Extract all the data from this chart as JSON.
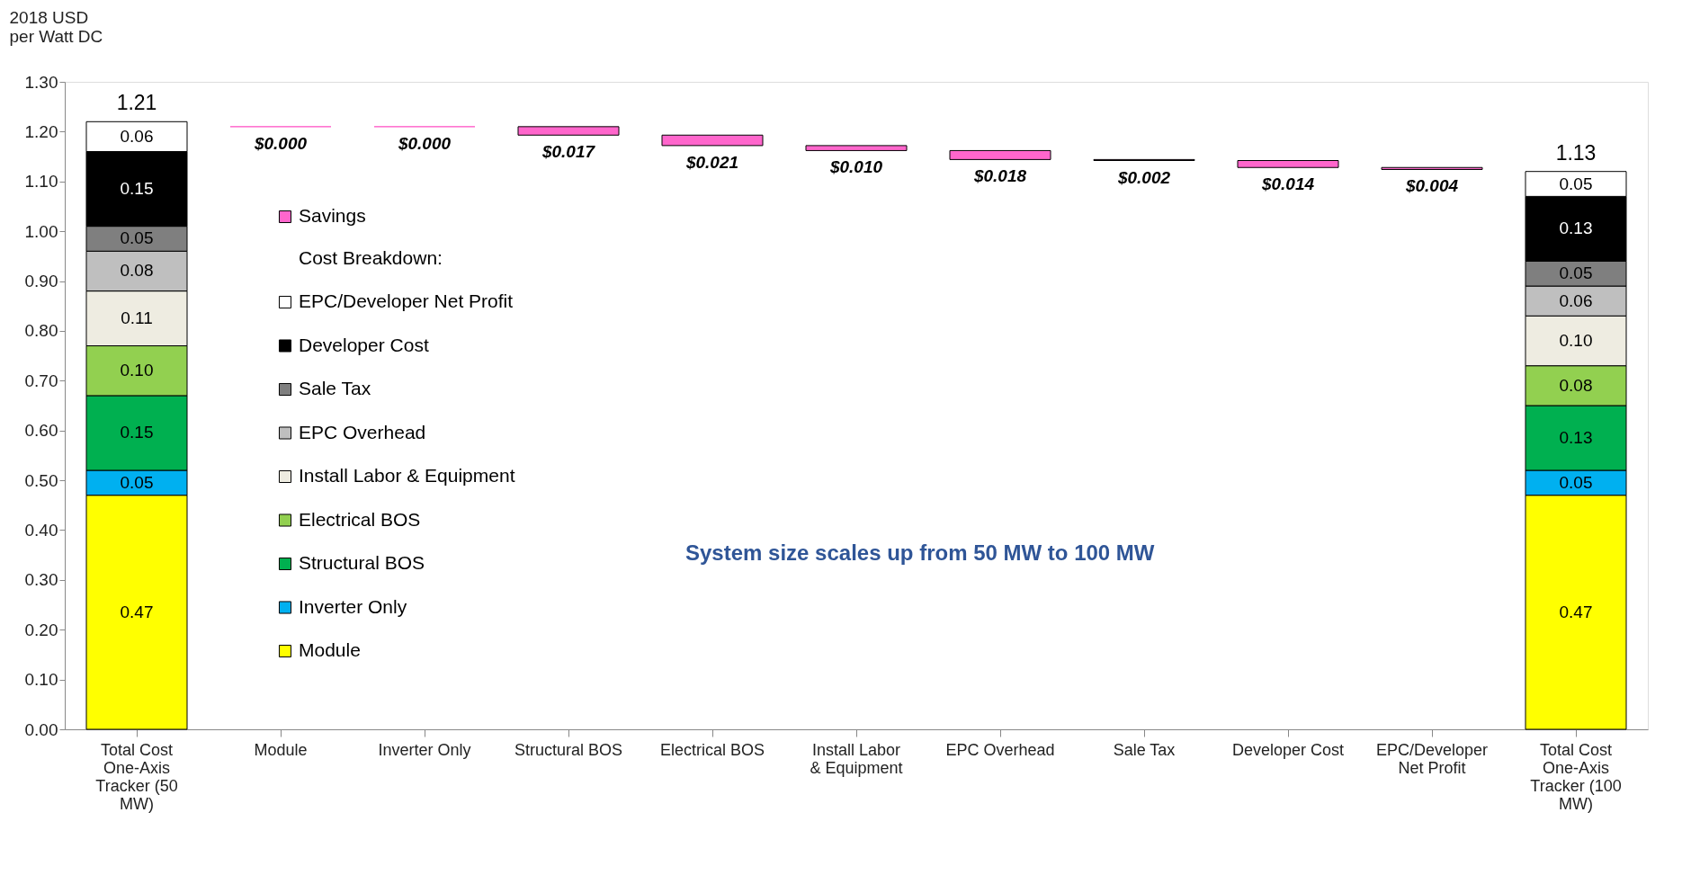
{
  "chart_data": {
    "type": "bar",
    "stacked": true,
    "ylabel": "2018 USD per Watt DC",
    "categories": [
      "Total Cost One-Axis Tracker (50 MW)",
      "Module",
      "Inverter Only",
      "Structural BOS",
      "Electrical BOS",
      "Install Labor & Equipment",
      "EPC Overhead",
      "Sale Tax",
      "Developer Cost",
      "EPC/Developer Net Profit",
      "Total Cost One-Axis Tracker (100 MW)"
    ],
    "series": [
      {
        "name": "Module",
        "color": "#ffff00",
        "values": [
          0.47,
          null,
          null,
          null,
          null,
          null,
          null,
          null,
          null,
          null,
          0.47
        ],
        "value_labels": [
          "0.47",
          null,
          null,
          null,
          null,
          null,
          null,
          null,
          null,
          null,
          "0.47"
        ]
      },
      {
        "name": "Inverter Only",
        "color": "#00b0f0",
        "values": [
          0.05,
          null,
          null,
          null,
          null,
          null,
          null,
          null,
          null,
          null,
          0.05
        ],
        "value_labels": [
          "0.05",
          null,
          null,
          null,
          null,
          null,
          null,
          null,
          null,
          null,
          "0.05"
        ]
      },
      {
        "name": "Structural BOS",
        "color": "#00b050",
        "values": [
          0.15,
          null,
          null,
          null,
          null,
          null,
          null,
          null,
          null,
          null,
          0.13
        ],
        "value_labels": [
          "0.15",
          null,
          null,
          null,
          null,
          null,
          null,
          null,
          null,
          null,
          "0.13"
        ]
      },
      {
        "name": "Electrical BOS",
        "color": "#92d050",
        "values": [
          0.1,
          null,
          null,
          null,
          null,
          null,
          null,
          null,
          null,
          null,
          0.08
        ],
        "value_labels": [
          "0.10",
          null,
          null,
          null,
          null,
          null,
          null,
          null,
          null,
          null,
          "0.08"
        ]
      },
      {
        "name": "Install Labor & Equipment",
        "color": "#eeece1",
        "values": [
          0.11,
          null,
          null,
          null,
          null,
          null,
          null,
          null,
          null,
          null,
          0.1
        ],
        "value_labels": [
          "0.11",
          null,
          null,
          null,
          null,
          null,
          null,
          null,
          null,
          null,
          "0.10"
        ]
      },
      {
        "name": "EPC Overhead",
        "color": "#bfbfbf",
        "values": [
          0.08,
          null,
          null,
          null,
          null,
          null,
          null,
          null,
          null,
          null,
          0.06
        ],
        "value_labels": [
          "0.08",
          null,
          null,
          null,
          null,
          null,
          null,
          null,
          null,
          null,
          "0.06"
        ]
      },
      {
        "name": "Sale Tax",
        "color": "#7f7f7f",
        "values": [
          0.05,
          null,
          null,
          null,
          null,
          null,
          null,
          null,
          null,
          null,
          0.05
        ],
        "value_labels": [
          "0.05",
          null,
          null,
          null,
          null,
          null,
          null,
          null,
          null,
          null,
          "0.05"
        ]
      },
      {
        "name": "Developer Cost",
        "color": "#000000",
        "values": [
          0.15,
          null,
          null,
          null,
          null,
          null,
          null,
          null,
          null,
          null,
          0.13
        ],
        "value_labels": [
          "0.15",
          null,
          null,
          null,
          null,
          null,
          null,
          null,
          null,
          null,
          "0.13"
        ]
      },
      {
        "name": "EPC/Developer Net Profit",
        "color": "#ffffff",
        "values": [
          0.06,
          null,
          null,
          null,
          null,
          null,
          null,
          null,
          null,
          null,
          0.05
        ],
        "value_labels": [
          "0.06",
          null,
          null,
          null,
          null,
          null,
          null,
          null,
          null,
          null,
          "0.05"
        ]
      },
      {
        "name": "Savings",
        "color": "#ff66cc",
        "base": [
          null,
          1.21,
          1.21,
          1.193,
          1.172,
          1.162,
          1.144,
          1.142,
          1.128,
          1.124,
          null
        ],
        "values": [
          null,
          0.0,
          0.0,
          0.017,
          0.021,
          0.01,
          0.018,
          0.002,
          0.014,
          0.004,
          null
        ],
        "value_labels": [
          null,
          "$0.000",
          "$0.000",
          "$0.017",
          "$0.021",
          "$0.010",
          "$0.018",
          "$0.002",
          "$0.014",
          "$0.004",
          null
        ]
      }
    ],
    "totals": [
      "1.21",
      null,
      null,
      null,
      null,
      null,
      null,
      null,
      null,
      null,
      "1.13"
    ],
    "legend_title": "Cost Breakdown:",
    "legend": "left",
    "annotations": [
      "System size scales up from 50 MW to 100 MW"
    ],
    "ylim": [
      0,
      1.3
    ],
    "yticks": [
      {
        "value": 0,
        "label": "0.00"
      },
      {
        "value": 0.1,
        "label": "0.10"
      },
      {
        "value": 0.2,
        "label": "0.20"
      },
      {
        "value": 0.3,
        "label": "0.30"
      },
      {
        "value": 0.4,
        "label": "0.40"
      },
      {
        "value": 0.5,
        "label": "0.50"
      },
      {
        "value": 0.6,
        "label": "0.60"
      },
      {
        "value": 0.7,
        "label": "0.70"
      },
      {
        "value": 0.8,
        "label": "0.80"
      },
      {
        "value": 0.9,
        "label": "0.90"
      },
      {
        "value": 1.0,
        "label": "1.00"
      },
      {
        "value": 1.1,
        "label": "1.10"
      },
      {
        "value": 1.2,
        "label": "1.20"
      },
      {
        "value": 1.3,
        "label": "1.30"
      }
    ],
    "grid": false
  }
}
